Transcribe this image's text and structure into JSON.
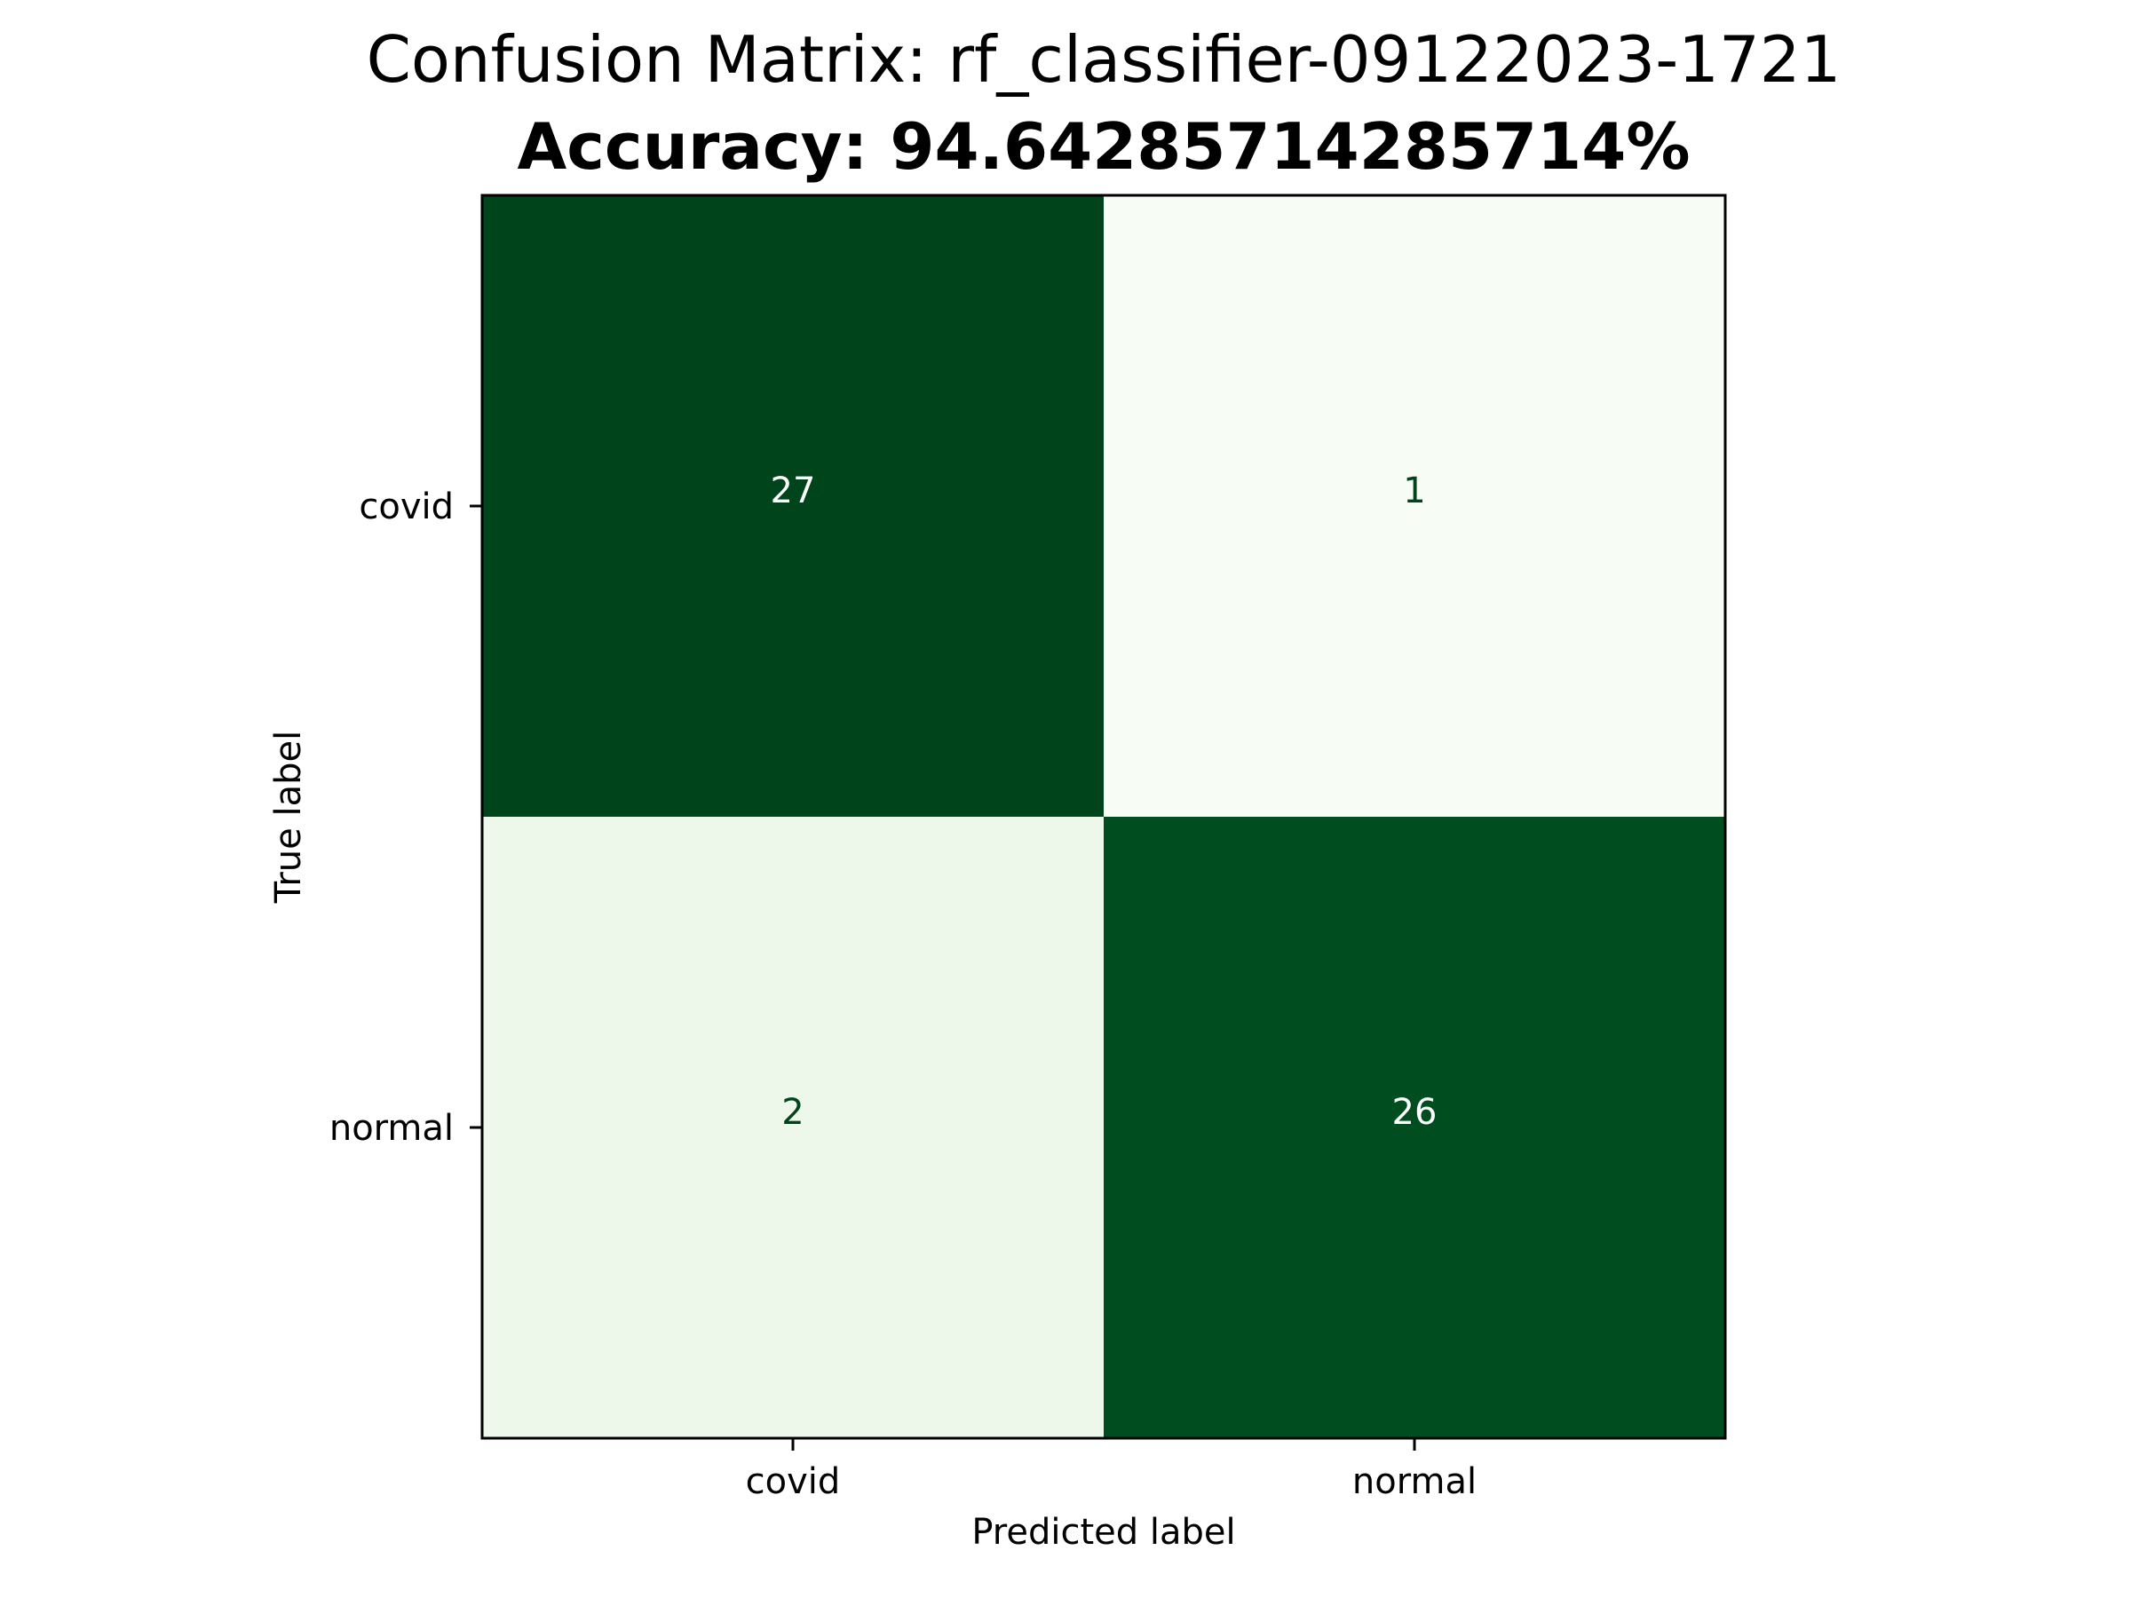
{
  "chart_data": {
    "type": "heatmap",
    "title": "Confusion Matrix: rf_classifier-09122023-1721",
    "subtitle": "Accuracy: 94.64285714285714%",
    "xlabel": "Predicted label",
    "ylabel": "True label",
    "x_categories": [
      "covid",
      "normal"
    ],
    "y_categories": [
      "covid",
      "normal"
    ],
    "values": [
      [
        27,
        1
      ],
      [
        2,
        26
      ]
    ],
    "colormap": "Greens",
    "cell_colors": [
      [
        "#00441b",
        "#f7fcf5"
      ],
      [
        "#eef8ea",
        "#004e1f"
      ]
    ],
    "text_colors": [
      [
        "#ffffff",
        "#00441b"
      ],
      [
        "#00441b",
        "#ffffff"
      ]
    ],
    "grid": false,
    "legend": "none"
  }
}
